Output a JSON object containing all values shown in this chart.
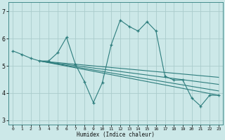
{
  "xlabel": "Humidex (Indice chaleur)",
  "xlim": [
    -0.5,
    23.5
  ],
  "ylim": [
    2.85,
    7.35
  ],
  "yticks": [
    3,
    4,
    5,
    6,
    7
  ],
  "xticks": [
    0,
    1,
    2,
    3,
    4,
    5,
    6,
    7,
    8,
    9,
    10,
    11,
    12,
    13,
    14,
    15,
    16,
    17,
    18,
    19,
    20,
    21,
    22,
    23
  ],
  "background_color": "#cce8e8",
  "line_color": "#2d7d7d",
  "grid_color": "#aacccc",
  "main_data_x": [
    0,
    1,
    2,
    3,
    4,
    5,
    6,
    7,
    8,
    9,
    10,
    11,
    12,
    13,
    14,
    15,
    16,
    17,
    18,
    19,
    20,
    21,
    22,
    23
  ],
  "main_data_y": [
    5.55,
    5.42,
    5.28,
    5.18,
    5.18,
    5.48,
    6.05,
    5.05,
    4.42,
    3.65,
    4.38,
    5.78,
    6.68,
    6.45,
    6.28,
    6.62,
    6.28,
    4.62,
    4.48,
    4.48,
    3.82,
    3.52,
    3.92,
    3.92
  ],
  "regression_lines": [
    {
      "x": [
        3,
        23
      ],
      "y": [
        5.18,
        3.92
      ]
    },
    {
      "x": [
        3,
        23
      ],
      "y": [
        5.18,
        4.08
      ]
    },
    {
      "x": [
        3,
        23
      ],
      "y": [
        5.18,
        4.32
      ]
    },
    {
      "x": [
        3,
        23
      ],
      "y": [
        5.18,
        4.58
      ]
    }
  ]
}
